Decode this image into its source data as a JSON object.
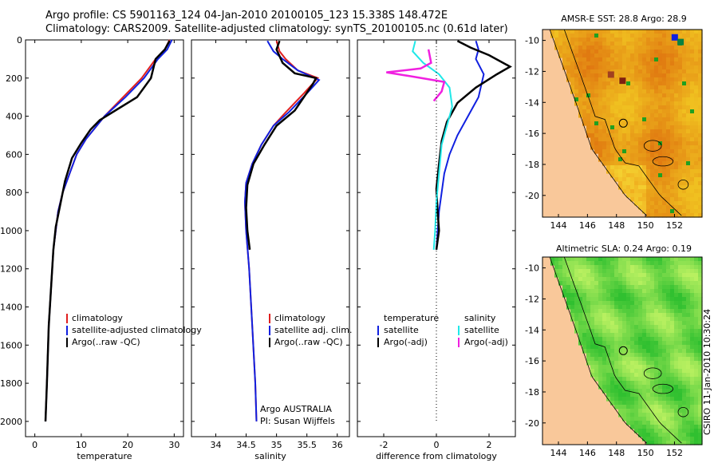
{
  "header": {
    "line1": "Argo profile: CS 5901163_124 04-Jan-2010 20100105_123 15.338S 148.472E",
    "line2": "Climatology: CARS2009. Satellite-adjusted climatology: synTS_20100105.nc (0.61d later)"
  },
  "credit": "CSIRO 11-Jan-2010 10:30:24",
  "colors": {
    "climatology": "#e02020",
    "satellite": "#1020e0",
    "argo": "#000000",
    "sat_salinity": "#20e8e8",
    "argo_adj_salinity": "#f020e0"
  },
  "chart_data": [
    {
      "type": "line",
      "id": "temperature",
      "xlabel": "temperature",
      "ylabel": "",
      "xlim": [
        -2,
        32
      ],
      "ylim": [
        0,
        2080
      ],
      "y_inverted": true,
      "xticks": [
        0,
        10,
        20,
        30
      ],
      "yticks": [
        0,
        200,
        400,
        600,
        800,
        1000,
        1200,
        1400,
        1600,
        1800,
        2000
      ],
      "legend": [
        "climatology",
        "satellite-adjusted climatology",
        "Argo(..raw -QC)"
      ],
      "series": [
        {
          "name": "climatology",
          "color": "#e02020",
          "x": [
            29,
            28,
            26,
            23,
            19,
            15,
            13,
            11,
            9,
            7.5,
            6,
            5,
            4.5,
            4,
            3.5,
            3,
            2.6,
            2.3
          ],
          "y": [
            0,
            50,
            100,
            200,
            300,
            400,
            460,
            520,
            600,
            700,
            800,
            900,
            1000,
            1100,
            1300,
            1500,
            1800,
            2000
          ]
        },
        {
          "name": "satellite-adjusted climatology",
          "color": "#1020e0",
          "x": [
            29.5,
            28.5,
            26.5,
            23.5,
            19.5,
            15,
            13,
            11,
            9,
            7.5,
            6,
            5,
            4.5,
            4,
            3.5,
            3,
            2.6,
            2.3
          ],
          "y": [
            0,
            50,
            100,
            200,
            300,
            400,
            460,
            520,
            600,
            700,
            800,
            900,
            1000,
            1100,
            1300,
            1500,
            1800,
            2000
          ]
        },
        {
          "name": "Argo(..raw -QC)",
          "color": "#000000",
          "x": [
            29,
            28,
            26,
            25,
            22,
            18,
            14,
            12,
            10,
            8,
            6.5,
            5.5,
            4.5,
            4,
            3.5,
            3,
            2.6,
            2.3
          ],
          "y": [
            5,
            50,
            100,
            200,
            300,
            360,
            420,
            470,
            540,
            620,
            740,
            860,
            980,
            1100,
            1300,
            1500,
            1800,
            2000
          ]
        }
      ]
    },
    {
      "type": "line",
      "id": "salinity",
      "xlabel": "salinity",
      "xlim": [
        33.6,
        36.2
      ],
      "ylim": [
        0,
        2080
      ],
      "y_inverted": true,
      "xticks": [
        34,
        34.5,
        35,
        35.5,
        36
      ],
      "legend": [
        "climatology",
        "satellite adj. clim.",
        "Argo(..raw -QC)"
      ],
      "annotation": [
        "Argo AUSTRALIA",
        "PI: Susan Wijffels"
      ],
      "series": [
        {
          "name": "climatology",
          "color": "#e02020",
          "x": [
            35.0,
            35.05,
            35.15,
            35.35,
            35.68,
            35.45,
            35.15,
            34.95,
            34.75,
            34.6,
            34.5,
            34.48,
            34.5,
            34.55,
            34.6,
            34.65,
            34.67
          ],
          "y": [
            5,
            60,
            100,
            160,
            200,
            280,
            380,
            450,
            550,
            650,
            750,
            850,
            1000,
            1200,
            1500,
            1800,
            2000
          ]
        },
        {
          "name": "satellite adj. clim.",
          "color": "#1020e0",
          "x": [
            34.85,
            34.95,
            35.1,
            35.35,
            35.7,
            35.5,
            35.2,
            34.95,
            34.75,
            34.6,
            34.5,
            34.48,
            34.5,
            34.55,
            34.6,
            34.65,
            34.67
          ],
          "y": [
            5,
            60,
            100,
            160,
            210,
            280,
            380,
            450,
            550,
            650,
            750,
            850,
            1000,
            1200,
            1500,
            1800,
            2000
          ]
        },
        {
          "name": "Argo(..raw -QC)",
          "color": "#000000",
          "x": [
            35.05,
            35.0,
            35.1,
            35.3,
            35.65,
            35.6,
            35.3,
            35.0,
            34.8,
            34.62,
            34.52,
            34.5,
            34.52,
            34.56
          ],
          "y": [
            5,
            50,
            120,
            175,
            200,
            230,
            370,
            450,
            550,
            650,
            760,
            880,
            1000,
            1100
          ]
        }
      ]
    },
    {
      "type": "line",
      "id": "difference",
      "xlabel": "difference from climatology",
      "xlim": [
        -3,
        3
      ],
      "ylim": [
        0,
        2080
      ],
      "y_inverted": true,
      "xticks": [
        -2,
        0,
        2
      ],
      "legend_groups": [
        {
          "title": "temperature",
          "items": [
            "satellite",
            "Argo(-adj)"
          ]
        },
        {
          "title": "salinity",
          "items": [
            "satellite",
            "Argo(-adj)"
          ]
        }
      ],
      "series": [
        {
          "name": "temperature satellite",
          "color": "#1020e0",
          "x": [
            1.5,
            1.6,
            1.5,
            1.8,
            1.6,
            1.2,
            0.8,
            0.5,
            0.3,
            0.2,
            0.1,
            0.05,
            0.0
          ],
          "y": [
            5,
            50,
            100,
            180,
            300,
            400,
            500,
            600,
            700,
            800,
            900,
            1000,
            1100
          ]
        },
        {
          "name": "temperature Argo(-adj)",
          "color": "#000000",
          "x": [
            0.8,
            1.3,
            2.0,
            2.8,
            2.3,
            1.5,
            0.8,
            0.4,
            0.2,
            0.1,
            0.0,
            0.05,
            0.1,
            0.0
          ],
          "y": [
            5,
            40,
            80,
            140,
            180,
            250,
            330,
            430,
            530,
            650,
            780,
            900,
            1000,
            1100
          ]
        },
        {
          "name": "salinity satellite",
          "color": "#20e8e8",
          "x": [
            -0.8,
            -0.9,
            -0.5,
            0.1,
            0.5,
            0.6,
            0.4,
            0.2,
            0.1,
            0.0,
            -0.05,
            -0.1
          ],
          "y": [
            5,
            60,
            120,
            180,
            250,
            350,
            450,
            550,
            700,
            850,
            1000,
            1100
          ]
        },
        {
          "name": "salinity Argo(-adj)",
          "color": "#f020e0",
          "x": [
            -0.3,
            -0.2,
            -0.6,
            -1.9,
            -1.0,
            0.3,
            0.2,
            -0.1
          ],
          "y": [
            50,
            120,
            150,
            170,
            190,
            220,
            270,
            320
          ]
        },
        {
          "name": "clim zero",
          "color": "#000000",
          "x": [
            0,
            0
          ],
          "y": [
            0,
            2000
          ]
        }
      ]
    }
  ],
  "maps": [
    {
      "title": "AMSR-E SST: 28.8 Argo: 28.9",
      "xticks": [
        "144",
        "146",
        "148",
        "150",
        "152"
      ],
      "yticks": [
        "-10",
        "-12",
        "-14",
        "-16",
        "-18",
        "-20"
      ],
      "kind": "sst"
    },
    {
      "title": "Altimetric SLA: 0.24 Argo: 0.19",
      "xticks": [
        "144",
        "146",
        "148",
        "150",
        "152"
      ],
      "yticks": [
        "-10",
        "-12",
        "-14",
        "-16",
        "-18",
        "-20"
      ],
      "kind": "sla"
    }
  ]
}
